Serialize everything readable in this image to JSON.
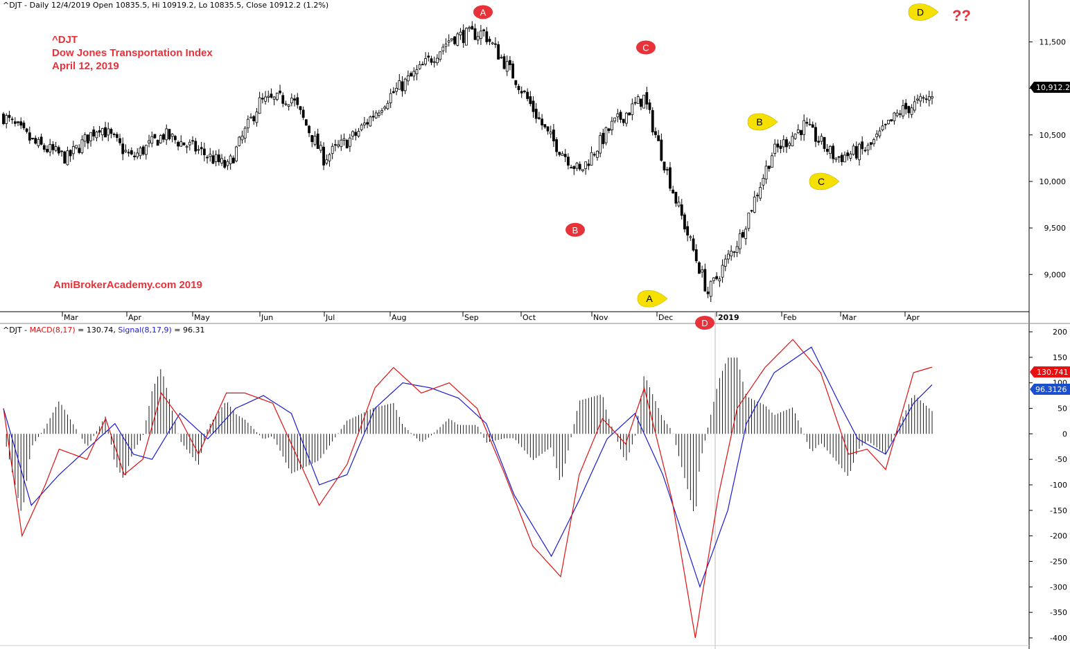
{
  "header": {
    "price_label": "^DJT - Daily 12/4/2019 Open 10835.5, Hi 10919.2, Lo 10835.5, Close 10912.2 (1.2%)",
    "macd_prefix": "^DJT - ",
    "macd_label": "MACD(8,17)",
    "macd_eq": " = 130.74, ",
    "signal_label": "Signal(8,17,9)",
    "signal_eq": " = 96.31"
  },
  "title_block": {
    "line1": "^DJT",
    "line2": "Dow Jones Transportation Index",
    "line3": "April 12, 2019"
  },
  "watermark": "AmiBrokerAcademy.com  2019",
  "question_marks": "??",
  "colors": {
    "macd": "#dd1111",
    "signal": "#1a1ad0",
    "annotation_red": "#e8323a",
    "annotation_yellow": "#f5e000",
    "last_price_bg": "#000000",
    "macd_value_bg": "#e81010",
    "signal_value_bg": "#1a4fd0"
  },
  "chart_data": [
    {
      "type": "candlestick",
      "title": "^DJT",
      "x_months": [
        "Mar",
        "Apr",
        "May",
        "Jun",
        "Jul",
        "Aug",
        "Sep",
        "Oct",
        "Nov",
        "Dec",
        "2019",
        "Feb",
        "Mar",
        "Apr"
      ],
      "y_ticks": [
        "11,500",
        "11,000",
        "10,500",
        "10,000",
        "9,500",
        "9,000"
      ],
      "y_tick_values": [
        11500,
        11000,
        10500,
        10000,
        9500,
        9000
      ],
      "ylim": [
        8600,
        11950
      ],
      "last_price": "10,912.2",
      "close_anchors": [
        [
          "Feb",
          10700
        ],
        [
          "Feb",
          10400
        ],
        [
          "Mar",
          10250
        ],
        [
          "Mar",
          10600
        ],
        [
          "Apr",
          10250
        ],
        [
          "Apr",
          10500
        ],
        [
          "May",
          10350
        ],
        [
          "May",
          10150
        ],
        [
          "Jun",
          10850
        ],
        [
          "Jun",
          10900
        ],
        [
          "Jul",
          10250
        ],
        [
          "Jul",
          10500
        ],
        [
          "Aug",
          10900
        ],
        [
          "Aug",
          11200
        ],
        [
          "Sep",
          11550
        ],
        [
          "Sep",
          11600
        ],
        [
          "Oct",
          11100
        ],
        [
          "Oct",
          10500
        ],
        [
          "Nov",
          10100
        ],
        [
          "Nov",
          10600
        ],
        [
          "Dec",
          10900
        ],
        [
          "Dec",
          9800
        ],
        [
          "2019",
          8800
        ],
        [
          "2019",
          9400
        ],
        [
          "Feb",
          10300
        ],
        [
          "Feb",
          10600
        ],
        [
          "Mar",
          10250
        ],
        [
          "Mar",
          10350
        ],
        [
          "Apr",
          10750
        ],
        [
          "Apr",
          10912
        ]
      ],
      "annotations": [
        {
          "label": "A",
          "style": "red",
          "month_ref": "Sep",
          "price": 11820
        },
        {
          "label": "C",
          "style": "red",
          "month_ref": "Dec",
          "price": 11440
        },
        {
          "label": "B",
          "style": "red",
          "month_ref": "Nov",
          "price": 9480
        },
        {
          "label": "A",
          "style": "yellow",
          "month_ref": "Dec",
          "price": 8740
        },
        {
          "label": "D",
          "style": "red",
          "month_ref": "2019",
          "price": 8580
        },
        {
          "label": "B",
          "style": "yellow",
          "month_ref": "Feb",
          "price": 10640
        },
        {
          "label": "C",
          "style": "yellow",
          "month_ref": "Mar",
          "price": 10000
        },
        {
          "label": "D",
          "style": "yellow",
          "month_ref": "Apr",
          "price": 11820
        }
      ]
    },
    {
      "type": "line",
      "title": "MACD(8,17)",
      "y_ticks": [
        "200",
        "150",
        "100",
        "50",
        "0",
        "-50",
        "-100",
        "-150",
        "-200",
        "-250",
        "-300",
        "-350",
        "-400"
      ],
      "y_tick_values": [
        200,
        150,
        100,
        50,
        0,
        -50,
        -100,
        -150,
        -200,
        -250,
        -300,
        -350,
        -400
      ],
      "ylim": [
        -415,
        215
      ],
      "series": [
        {
          "name": "MACD(8,17)",
          "last_value": "130.741",
          "points": [
            [
              0,
              50
            ],
            [
              0.02,
              -200
            ],
            [
              0.045,
              -100
            ],
            [
              0.06,
              -30
            ],
            [
              0.09,
              -50
            ],
            [
              0.11,
              30
            ],
            [
              0.13,
              -80
            ],
            [
              0.15,
              -50
            ],
            [
              0.17,
              80
            ],
            [
              0.19,
              30
            ],
            [
              0.21,
              -40
            ],
            [
              0.24,
              80
            ],
            [
              0.26,
              80
            ],
            [
              0.29,
              60
            ],
            [
              0.32,
              -60
            ],
            [
              0.34,
              -140
            ],
            [
              0.37,
              -60
            ],
            [
              0.4,
              90
            ],
            [
              0.42,
              130
            ],
            [
              0.45,
              80
            ],
            [
              0.48,
              100
            ],
            [
              0.51,
              50
            ],
            [
              0.54,
              -80
            ],
            [
              0.57,
              -220
            ],
            [
              0.6,
              -280
            ],
            [
              0.62,
              -80
            ],
            [
              0.645,
              30
            ],
            [
              0.67,
              -20
            ],
            [
              0.69,
              90
            ],
            [
              0.72,
              -130
            ],
            [
              0.745,
              -400
            ],
            [
              0.77,
              -120
            ],
            [
              0.79,
              50
            ],
            [
              0.82,
              130
            ],
            [
              0.85,
              185
            ],
            [
              0.88,
              120
            ],
            [
              0.91,
              -40
            ],
            [
              0.93,
              -30
            ],
            [
              0.95,
              -70
            ],
            [
              0.98,
              120
            ],
            [
              1,
              130.74
            ]
          ]
        },
        {
          "name": "Signal(8,17,9)",
          "last_value": "96.3126",
          "points": [
            [
              0,
              50
            ],
            [
              0.03,
              -140
            ],
            [
              0.06,
              -80
            ],
            [
              0.09,
              -30
            ],
            [
              0.12,
              20
            ],
            [
              0.14,
              -40
            ],
            [
              0.16,
              -50
            ],
            [
              0.19,
              40
            ],
            [
              0.22,
              -10
            ],
            [
              0.25,
              50
            ],
            [
              0.28,
              75
            ],
            [
              0.31,
              40
            ],
            [
              0.34,
              -100
            ],
            [
              0.37,
              -80
            ],
            [
              0.4,
              50
            ],
            [
              0.43,
              100
            ],
            [
              0.46,
              90
            ],
            [
              0.49,
              70
            ],
            [
              0.52,
              20
            ],
            [
              0.55,
              -120
            ],
            [
              0.59,
              -240
            ],
            [
              0.62,
              -130
            ],
            [
              0.65,
              -10
            ],
            [
              0.68,
              40
            ],
            [
              0.71,
              -80
            ],
            [
              0.75,
              -300
            ],
            [
              0.78,
              -150
            ],
            [
              0.8,
              20
            ],
            [
              0.83,
              120
            ],
            [
              0.87,
              170
            ],
            [
              0.9,
              60
            ],
            [
              0.92,
              -10
            ],
            [
              0.95,
              -40
            ],
            [
              0.98,
              60
            ],
            [
              1,
              96.31
            ]
          ]
        }
      ]
    }
  ]
}
